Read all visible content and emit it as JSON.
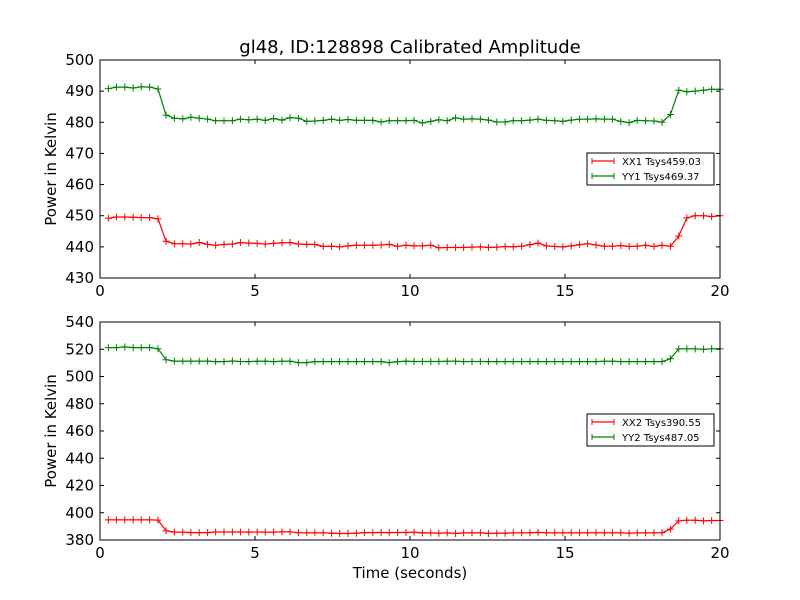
{
  "figure": {
    "title": "gl48, ID:128898 Calibrated Amplitude",
    "xlabel": "Time (seconds)"
  },
  "chart_data": [
    {
      "type": "line",
      "ylabel": "Power in Kelvin",
      "xlim": [
        0,
        20
      ],
      "ylim": [
        430,
        500
      ],
      "xticks": [
        0,
        5,
        10,
        15,
        20
      ],
      "yticks": [
        430,
        440,
        450,
        460,
        470,
        480,
        490,
        500
      ],
      "legend_position": "center-right",
      "x": [
        0.27,
        0.53,
        0.8,
        1.07,
        1.33,
        1.6,
        1.87,
        2.13,
        2.4,
        2.67,
        2.93,
        3.2,
        3.47,
        3.73,
        4.0,
        4.27,
        4.53,
        4.8,
        5.07,
        5.33,
        5.6,
        5.87,
        6.13,
        6.4,
        6.67,
        6.93,
        7.2,
        7.47,
        7.73,
        8.0,
        8.27,
        8.53,
        8.8,
        9.07,
        9.33,
        9.6,
        9.87,
        10.13,
        10.4,
        10.67,
        10.93,
        11.2,
        11.47,
        11.73,
        12.0,
        12.27,
        12.53,
        12.8,
        13.07,
        13.33,
        13.6,
        13.87,
        14.13,
        14.4,
        14.67,
        14.93,
        15.2,
        15.47,
        15.73,
        16.0,
        16.27,
        16.53,
        16.8,
        17.07,
        17.33,
        17.6,
        17.87,
        18.13,
        18.4,
        18.67,
        18.93,
        19.2,
        19.47,
        19.73,
        20.0
      ],
      "series": [
        {
          "name": "XX1 Tsys459.03",
          "color": "#ff0000",
          "values": [
            449.2,
            449.6,
            449.6,
            449.5,
            449.4,
            449.4,
            449.0,
            441.8,
            441.0,
            441.0,
            440.9,
            441.4,
            440.8,
            440.5,
            440.8,
            440.9,
            441.4,
            441.2,
            441.1,
            440.9,
            441.1,
            441.3,
            441.4,
            440.9,
            440.8,
            440.8,
            440.1,
            440.2,
            440.0,
            440.3,
            440.5,
            440.5,
            440.5,
            440.6,
            440.8,
            440.2,
            440.5,
            440.3,
            440.3,
            440.5,
            439.7,
            439.8,
            439.8,
            439.8,
            439.9,
            440.0,
            439.8,
            439.9,
            440.1,
            440.0,
            440.2,
            440.7,
            441.2,
            440.3,
            440.1,
            440.0,
            440.3,
            440.7,
            441.0,
            440.6,
            440.2,
            440.2,
            440.4,
            440.1,
            440.2,
            440.5,
            440.1,
            440.5,
            440.2,
            443.5,
            449.3,
            450.0,
            450.0,
            449.7,
            450.0
          ]
        },
        {
          "name": "YY1 Tsys469.37",
          "color": "#008000",
          "values": [
            490.8,
            491.3,
            491.3,
            491.0,
            491.4,
            491.3,
            490.7,
            482.3,
            481.3,
            481.1,
            481.6,
            481.3,
            481.0,
            480.5,
            480.5,
            480.5,
            481.0,
            480.8,
            481.0,
            480.6,
            481.2,
            480.7,
            481.5,
            481.3,
            480.3,
            480.4,
            480.6,
            481.0,
            480.6,
            480.9,
            480.6,
            480.6,
            480.6,
            480.1,
            480.5,
            480.5,
            480.5,
            480.6,
            479.8,
            480.3,
            480.8,
            480.5,
            481.4,
            481.0,
            481.1,
            481.0,
            480.7,
            480.1,
            480.1,
            480.5,
            480.5,
            480.7,
            481.0,
            480.6,
            480.5,
            480.3,
            480.7,
            481.0,
            481.0,
            481.1,
            481.0,
            481.0,
            480.3,
            479.9,
            480.6,
            480.5,
            480.4,
            480.0,
            482.5,
            490.3,
            489.8,
            490.0,
            490.3,
            490.6,
            490.6
          ]
        }
      ]
    },
    {
      "type": "line",
      "ylabel": "Power in Kelvin",
      "xlabel": "Time (seconds)",
      "xlim": [
        0,
        20
      ],
      "ylim": [
        380,
        540
      ],
      "xticks": [
        0,
        5,
        10,
        15,
        20
      ],
      "yticks": [
        380,
        400,
        420,
        440,
        460,
        480,
        500,
        520,
        540
      ],
      "legend_position": "center-right",
      "x": [
        0.27,
        0.53,
        0.8,
        1.07,
        1.33,
        1.6,
        1.87,
        2.13,
        2.4,
        2.67,
        2.93,
        3.2,
        3.47,
        3.73,
        4.0,
        4.27,
        4.53,
        4.8,
        5.07,
        5.33,
        5.6,
        5.87,
        6.13,
        6.4,
        6.67,
        6.93,
        7.2,
        7.47,
        7.73,
        8.0,
        8.27,
        8.53,
        8.8,
        9.07,
        9.33,
        9.6,
        9.87,
        10.13,
        10.4,
        10.67,
        10.93,
        11.2,
        11.47,
        11.73,
        12.0,
        12.27,
        12.53,
        12.8,
        13.07,
        13.33,
        13.6,
        13.87,
        14.13,
        14.4,
        14.67,
        14.93,
        15.2,
        15.47,
        15.73,
        16.0,
        16.27,
        16.53,
        16.8,
        17.07,
        17.33,
        17.6,
        17.87,
        18.13,
        18.4,
        18.67,
        18.93,
        19.2,
        19.47,
        19.73,
        20.0
      ],
      "series": [
        {
          "name": "XX2 Tsys390.55",
          "color": "#ff0000",
          "values": [
            394.8,
            394.8,
            394.8,
            394.8,
            394.8,
            394.8,
            394.6,
            386.8,
            385.8,
            385.8,
            385.4,
            385.4,
            385.4,
            385.9,
            385.9,
            385.9,
            385.9,
            385.8,
            385.9,
            385.8,
            385.8,
            386.0,
            386.0,
            385.3,
            385.3,
            385.3,
            385.3,
            385.0,
            384.8,
            384.8,
            385.0,
            385.4,
            385.4,
            385.5,
            385.4,
            385.5,
            385.5,
            385.7,
            385.2,
            385.2,
            385.0,
            385.2,
            384.8,
            385.2,
            385.2,
            385.3,
            384.8,
            385.0,
            385.0,
            385.3,
            385.3,
            385.3,
            385.6,
            385.3,
            385.3,
            385.3,
            385.3,
            385.3,
            385.3,
            385.3,
            385.3,
            385.3,
            385.3,
            385.0,
            385.2,
            385.2,
            385.3,
            385.3,
            388.0,
            394.0,
            394.5,
            394.5,
            394.0,
            394.3,
            394.3
          ]
        },
        {
          "name": "YY2 Tsys487.05",
          "color": "#008000",
          "values": [
            521.2,
            521.2,
            521.7,
            521.2,
            521.2,
            521.2,
            520.4,
            512.3,
            511.3,
            511.3,
            511.3,
            511.3,
            511.3,
            510.9,
            510.9,
            511.4,
            511.0,
            510.9,
            511.2,
            511.2,
            510.9,
            511.2,
            511.2,
            510.2,
            510.2,
            510.9,
            510.9,
            510.9,
            510.9,
            510.9,
            510.9,
            510.9,
            510.9,
            510.9,
            510.2,
            510.9,
            511.2,
            511.0,
            511.0,
            511.0,
            511.0,
            511.2,
            511.2,
            510.9,
            511.0,
            511.0,
            510.9,
            510.9,
            510.9,
            510.9,
            510.9,
            510.9,
            510.9,
            510.9,
            510.9,
            510.9,
            510.9,
            510.9,
            510.9,
            510.9,
            511.2,
            511.2,
            510.9,
            510.9,
            510.9,
            510.9,
            510.9,
            510.9,
            513.0,
            520.3,
            520.3,
            520.3,
            520.0,
            520.3,
            520.3
          ]
        }
      ]
    }
  ]
}
